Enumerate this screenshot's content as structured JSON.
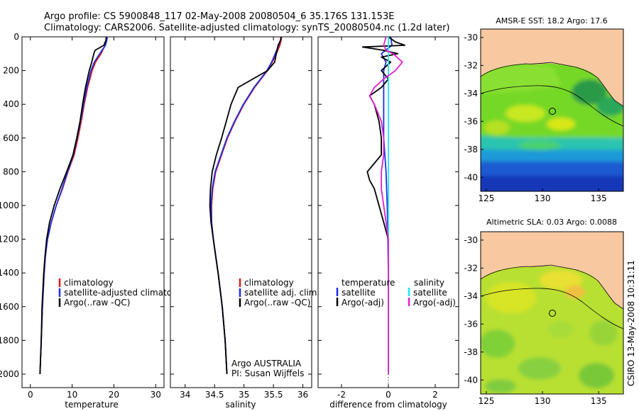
{
  "header": {
    "line1": "Argo profile: CS 5900848_117 02-May-2008 20080504_6 35.176S 131.153E",
    "line2": "Climatology: CARS2006. Satellite-adjusted climatology: synTS_20080504.nc (1.2d later)"
  },
  "side_text": "CSIRO 13-May-2008 10:31:11",
  "credit": {
    "line1": "Argo AUSTRALIA",
    "line2": "PI: Susan Wijffels"
  },
  "colors": {
    "climatology": "#e01818",
    "satellite": "#1a2ee8",
    "argo": "#000000",
    "sat_salinity": "#18e8f0",
    "argo_salinity_adj": "#e020d0",
    "land": "#f8c8a0"
  },
  "chart_data": [
    {
      "type": "line",
      "id": "temperature_profile",
      "xlabel": "temperature",
      "ylabel": "",
      "xlim": [
        -2,
        32
      ],
      "ylim": [
        2080,
        0
      ],
      "xticks": [
        0,
        10,
        20,
        30
      ],
      "yticks": [
        0,
        200,
        400,
        600,
        800,
        1000,
        1200,
        1400,
        1600,
        1800,
        2000
      ],
      "legend": [
        "climatology",
        "satellite-adjusted climatology",
        "Argo(..raw -QC)"
      ],
      "series": [
        {
          "name": "climatology",
          "color": "#e01818",
          "depth": [
            0,
            20,
            50,
            100,
            150,
            200,
            300,
            400,
            500,
            600,
            700,
            800,
            900,
            1000,
            1100,
            1200,
            1300,
            1400,
            1600,
            1800,
            2000
          ],
          "values": [
            18.3,
            18.2,
            17.9,
            16.9,
            15.6,
            14.8,
            13.7,
            12.9,
            12.2,
            11.4,
            10.5,
            9.0,
            7.7,
            6.2,
            5.0,
            4.1,
            3.6,
            3.3,
            2.9,
            2.6,
            2.3
          ]
        },
        {
          "name": "satellite-adjusted climatology",
          "color": "#1a2ee8",
          "depth": [
            0,
            20,
            50,
            100,
            150,
            200,
            300,
            400,
            500,
            600,
            700,
            800,
            900,
            1000,
            1100,
            1200,
            1300,
            1400,
            1600,
            1800,
            2000
          ],
          "values": [
            18.4,
            18.3,
            18.0,
            16.6,
            15.3,
            14.5,
            13.5,
            12.7,
            12.0,
            11.2,
            10.3,
            8.9,
            7.6,
            6.2,
            5.0,
            4.1,
            3.6,
            3.3,
            2.9,
            2.6,
            2.3
          ]
        },
        {
          "name": "Argo(..raw -QC)",
          "color": "#000000",
          "depth": [
            0,
            20,
            50,
            80,
            100,
            150,
            200,
            300,
            400,
            500,
            600,
            700,
            800,
            900,
            1000,
            1100,
            1200,
            1300,
            1400,
            1600,
            1800,
            2000
          ],
          "values": [
            18.2,
            18.1,
            17.6,
            15.5,
            15.2,
            14.7,
            14.1,
            13.2,
            12.5,
            11.9,
            11.1,
            10.2,
            8.7,
            7.1,
            5.7,
            4.6,
            3.9,
            3.5,
            3.2,
            2.8,
            2.6,
            2.3
          ]
        }
      ]
    },
    {
      "type": "line",
      "id": "salinity_profile",
      "xlabel": "salinity",
      "ylabel": "",
      "xlim": [
        33.75,
        36.15
      ],
      "ylim": [
        2080,
        0
      ],
      "xticks": [
        34,
        34.5,
        35,
        35.5,
        36
      ],
      "legend": [
        "climatology",
        "satellite adj. clim.",
        "Argo(..raw -QC)"
      ],
      "series": [
        {
          "name": "climatology",
          "color": "#e01818",
          "depth": [
            0,
            20,
            50,
            100,
            150,
            200,
            300,
            400,
            500,
            600,
            700,
            800,
            900,
            1000,
            1100,
            1200,
            1300,
            1400,
            1600,
            1800,
            2000
          ],
          "values": [
            35.64,
            35.63,
            35.61,
            35.55,
            35.48,
            35.4,
            35.18,
            35.0,
            34.85,
            34.72,
            34.62,
            34.52,
            34.47,
            34.45,
            34.45,
            34.48,
            34.52,
            34.56,
            34.63,
            34.68,
            34.71
          ]
        },
        {
          "name": "satellite adj. clim.",
          "color": "#1a2ee8",
          "depth": [
            0,
            20,
            50,
            100,
            150,
            200,
            300,
            400,
            500,
            600,
            700,
            800,
            900,
            1000,
            1100,
            1200,
            1300,
            1400,
            1600,
            1800,
            2000
          ],
          "values": [
            35.63,
            35.62,
            35.59,
            35.53,
            35.47,
            35.39,
            35.17,
            34.99,
            34.84,
            34.71,
            34.61,
            34.51,
            34.46,
            34.44,
            34.45,
            34.48,
            34.52,
            34.56,
            34.63,
            34.68,
            34.71
          ]
        },
        {
          "name": "Argo(..raw -QC)",
          "color": "#000000",
          "depth": [
            0,
            20,
            50,
            100,
            150,
            200,
            250,
            300,
            400,
            500,
            600,
            700,
            800,
            900,
            1000,
            1100,
            1200,
            1300,
            1400,
            1600,
            1800,
            2000
          ],
          "values": [
            35.63,
            35.62,
            35.58,
            35.55,
            35.52,
            35.4,
            35.15,
            34.9,
            34.78,
            34.7,
            34.62,
            34.53,
            34.46,
            34.43,
            34.42,
            34.44,
            34.48,
            34.52,
            34.56,
            34.63,
            34.68,
            34.71
          ]
        }
      ]
    },
    {
      "type": "line",
      "id": "difference_profile",
      "xlabel": "difference from climatology",
      "ylabel": "",
      "xlim": [
        -3,
        3
      ],
      "ylim": [
        2080,
        0
      ],
      "xticks": [
        -2,
        0,
        2
      ],
      "legend": [
        "temperature",
        "satellite",
        "Argo(-adj)",
        "salinity",
        "satellite",
        "Argo(-adj)"
      ],
      "series": [
        {
          "name": "temperature satellite",
          "color": "#1a2ee8",
          "depth": [
            0,
            50,
            100,
            150,
            200,
            300,
            400,
            600,
            800,
            1000,
            1200,
            1400,
            1600,
            1800,
            2000
          ],
          "values": [
            0.1,
            0.15,
            -0.3,
            -0.1,
            -0.2,
            -0.2,
            -0.2,
            -0.2,
            -0.1,
            -0.05,
            -0.02,
            0.0,
            0.0,
            0.0,
            0.0
          ]
        },
        {
          "name": "temperature Argo(-adj)",
          "color": "#000000",
          "depth": [
            0,
            30,
            50,
            60,
            80,
            100,
            120,
            150,
            200,
            250,
            300,
            350,
            400,
            500,
            600,
            700,
            750,
            800,
            850,
            900,
            950,
            1000,
            1050,
            1100,
            1150,
            1200,
            1300,
            1400,
            1600,
            1800,
            2000
          ],
          "values": [
            0.0,
            0.3,
            0.7,
            -1.1,
            -0.2,
            0.4,
            -0.3,
            0.1,
            -0.3,
            0.0,
            -0.3,
            -0.8,
            -0.6,
            -0.4,
            -0.3,
            -0.3,
            -0.6,
            -0.9,
            -0.8,
            -0.6,
            -0.5,
            -0.4,
            -0.3,
            -0.2,
            -0.1,
            0.0,
            0.0,
            0.0,
            0.0,
            0.0,
            0.0
          ]
        },
        {
          "name": "salinity satellite",
          "color": "#18e8f0",
          "depth": [
            0,
            100,
            200,
            400,
            600,
            800,
            1000,
            1200,
            1400,
            1600,
            1800,
            2000
          ],
          "values": [
            0.0,
            0.0,
            0.0,
            0.0,
            0.0,
            0.0,
            0.0,
            0.0,
            0.0,
            0.0,
            0.0,
            0.0
          ]
        },
        {
          "name": "salinity Argo(-adj)",
          "color": "#e020d0",
          "depth": [
            0,
            50,
            80,
            100,
            150,
            200,
            250,
            300,
            350,
            400,
            500,
            600,
            700,
            800,
            900,
            1000,
            1100,
            1200,
            1400,
            1600,
            1800,
            2000
          ],
          "values": [
            -0.1,
            -0.2,
            -0.1,
            0.2,
            0.6,
            0.3,
            -0.2,
            -0.6,
            -0.8,
            -0.6,
            -0.3,
            -0.2,
            -0.2,
            -0.3,
            -0.3,
            -0.2,
            -0.1,
            0.0,
            0.0,
            0.0,
            0.0,
            0.0
          ]
        }
      ]
    },
    {
      "type": "heatmap",
      "id": "sst_map",
      "title": "AMSR-E SST: 18.2 Argo: 17.6",
      "xlim": [
        124.5,
        137.2
      ],
      "ylim": [
        -41,
        -29.4
      ],
      "xticks": [
        125,
        130,
        135
      ],
      "yticks": [
        -30,
        -32,
        -34,
        -36,
        -38,
        -40
      ],
      "float_position": {
        "lon": 131.153,
        "lat": -35.176
      }
    },
    {
      "type": "heatmap",
      "id": "sla_map",
      "title": "Altimetric SLA: 0.03 Argo: 0.0088",
      "xlim": [
        124.5,
        137.2
      ],
      "ylim": [
        -41,
        -29.4
      ],
      "xticks": [
        125,
        130,
        135
      ],
      "yticks": [
        -30,
        -32,
        -34,
        -36,
        -38,
        -40
      ],
      "float_position": {
        "lon": 131.153,
        "lat": -35.176
      }
    }
  ]
}
